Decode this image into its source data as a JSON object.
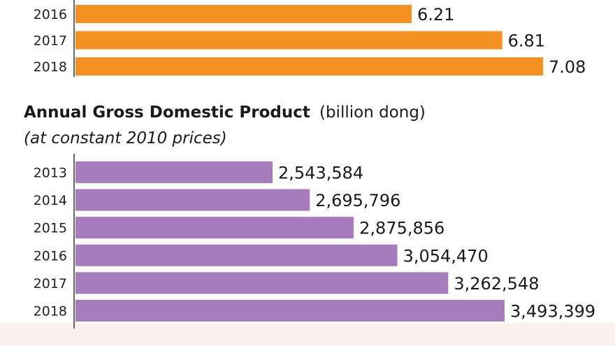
{
  "chart_data": [
    {
      "type": "bar",
      "orientation": "horizontal",
      "categories": [
        "2016",
        "2017",
        "2018"
      ],
      "values": [
        6.21,
        6.81,
        7.08
      ],
      "value_labels": [
        "6.21",
        "6.81",
        "7.08"
      ],
      "color": "#f39121",
      "title": "",
      "xlabel": "",
      "ylabel": "",
      "grid": false
    },
    {
      "type": "bar",
      "orientation": "horizontal",
      "title": "Annual Gross Domestic Product",
      "title_unit": "(billion dong)",
      "subtitle": "(at constant 2010 prices)",
      "categories": [
        "2013",
        "2014",
        "2015",
        "2016",
        "2017",
        "2018"
      ],
      "values": [
        2543584,
        2695796,
        2875856,
        3054470,
        3262548,
        3493399
      ],
      "value_labels": [
        "2,543,584",
        "2,695,796",
        "2,875,856",
        "3,054,470",
        "3,262,548",
        "3,493,399"
      ],
      "color": "#a67cbc",
      "xlabel": "",
      "ylabel": "",
      "grid": false
    }
  ]
}
